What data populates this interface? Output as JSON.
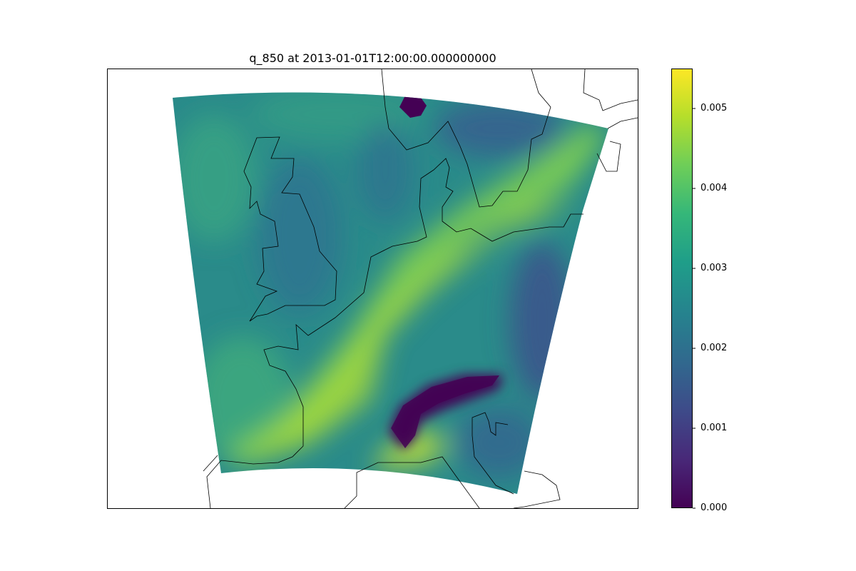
{
  "title": "q_850 at 2013-01-01T12:00:00.000000000",
  "colorbar": {
    "colormap": "viridis",
    "stops": [
      "#440154",
      "#482878",
      "#3e4a89",
      "#31688e",
      "#26828e",
      "#1f9e89",
      "#35b779",
      "#6ece58",
      "#b5de2b",
      "#fde725"
    ],
    "range": [
      0,
      0.0055
    ],
    "ticks": [
      {
        "value": 0.0,
        "label": "0.000"
      },
      {
        "value": 0.001,
        "label": "0.001"
      },
      {
        "value": 0.002,
        "label": "0.002"
      },
      {
        "value": 0.003,
        "label": "0.003"
      },
      {
        "value": 0.004,
        "label": "0.004"
      },
      {
        "value": 0.005,
        "label": "0.005"
      }
    ]
  },
  "field_colors": {
    "ocean": "#2a8b8a",
    "moist_band": "#8fd14a",
    "very_moist": "#c6e03a",
    "dry": "#3d5d8f",
    "very_dry": "#440154",
    "coastline": "#000000"
  }
}
